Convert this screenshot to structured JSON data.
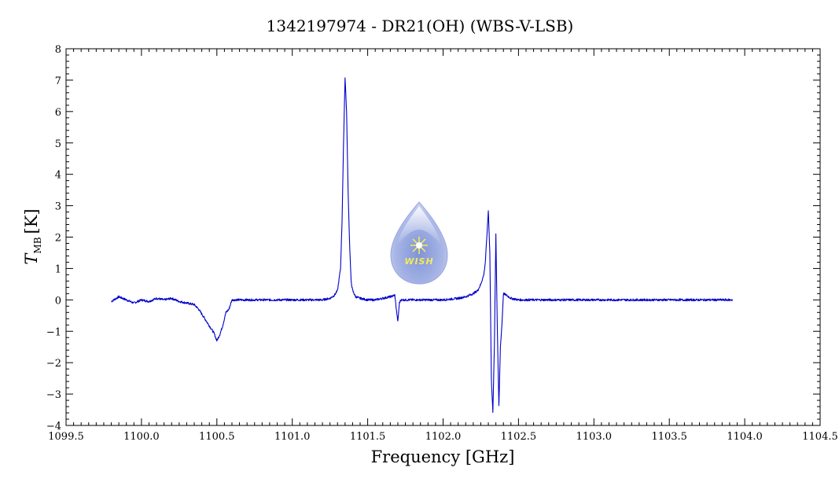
{
  "chart_data": {
    "type": "line",
    "title": "1342197974 - DR21(OH) (WBS-V-LSB)",
    "xlabel": "Frequency [GHz]",
    "ylabel": {
      "symbol": "T",
      "subscript": "MB",
      "unit": "[K]"
    },
    "xlim": [
      1099.5,
      1104.5
    ],
    "ylim": [
      -4,
      8
    ],
    "x_ticks": [
      "1099.5",
      "1100.0",
      "1100.5",
      "1101.0",
      "1101.5",
      "1102.0",
      "1102.5",
      "1103.0",
      "1103.5",
      "1104.0",
      "1104.5"
    ],
    "y_ticks": [
      "-4",
      "-3",
      "-2",
      "-1",
      "0",
      "1",
      "2",
      "3",
      "4",
      "5",
      "6",
      "7",
      "8"
    ],
    "grid": false,
    "line_color": "#0000cc",
    "logo": {
      "text": "WISH",
      "colors": [
        "#b9c4ec",
        "#7f93d6",
        "#f2ea5c"
      ]
    },
    "series": [
      {
        "x": [
          1099.8,
          1099.85,
          1099.9,
          1099.95,
          1100.0,
          1100.05,
          1100.1,
          1100.15,
          1100.2,
          1100.25,
          1100.3,
          1100.35,
          1100.38,
          1100.4,
          1100.42,
          1100.44,
          1100.46,
          1100.48,
          1100.5,
          1100.52,
          1100.54,
          1100.56,
          1100.58,
          1100.6,
          1100.65,
          1100.7,
          1100.8,
          1100.9,
          1101.0,
          1101.1,
          1101.2,
          1101.25,
          1101.28,
          1101.3,
          1101.32,
          1101.33,
          1101.34,
          1101.35,
          1101.36,
          1101.37,
          1101.38,
          1101.39,
          1101.4,
          1101.42,
          1101.45,
          1101.5,
          1101.55,
          1101.6,
          1101.65,
          1101.68,
          1101.69,
          1101.7,
          1101.71,
          1101.72,
          1101.75,
          1101.8,
          1101.9,
          1102.0,
          1102.1,
          1102.15,
          1102.2,
          1102.23,
          1102.25,
          1102.27,
          1102.28,
          1102.29,
          1102.3,
          1102.31,
          1102.32,
          1102.33,
          1102.34,
          1102.35,
          1102.36,
          1102.37,
          1102.38,
          1102.39,
          1102.4,
          1102.42,
          1102.45,
          1102.5,
          1102.6,
          1102.7,
          1102.8,
          1103.0,
          1103.2,
          1103.4,
          1103.6,
          1103.8,
          1103.92
        ],
        "y": [
          -0.05,
          0.1,
          0.0,
          -0.1,
          0.0,
          -0.05,
          0.05,
          0.0,
          0.05,
          -0.05,
          -0.1,
          -0.15,
          -0.3,
          -0.45,
          -0.6,
          -0.75,
          -0.9,
          -1.05,
          -1.3,
          -1.1,
          -0.8,
          -0.4,
          -0.3,
          0.0,
          0.0,
          0.0,
          0.0,
          0.0,
          0.0,
          0.0,
          0.0,
          0.05,
          0.15,
          0.3,
          1.0,
          2.5,
          5.0,
          7.1,
          6.0,
          3.5,
          1.8,
          0.6,
          0.3,
          0.1,
          0.05,
          0.0,
          0.0,
          0.05,
          0.1,
          0.15,
          -0.3,
          -0.7,
          -0.1,
          0.0,
          0.0,
          0.0,
          0.0,
          0.0,
          0.05,
          0.1,
          0.2,
          0.3,
          0.5,
          0.8,
          1.2,
          2.0,
          2.85,
          1.5,
          -2.5,
          -3.6,
          -1.5,
          2.1,
          -1.0,
          -3.4,
          -1.5,
          -0.8,
          0.2,
          0.15,
          0.05,
          0.0,
          0.0,
          0.0,
          0.0,
          0.0,
          0.0,
          0.0,
          0.0,
          0.0,
          0.0
        ]
      }
    ]
  }
}
